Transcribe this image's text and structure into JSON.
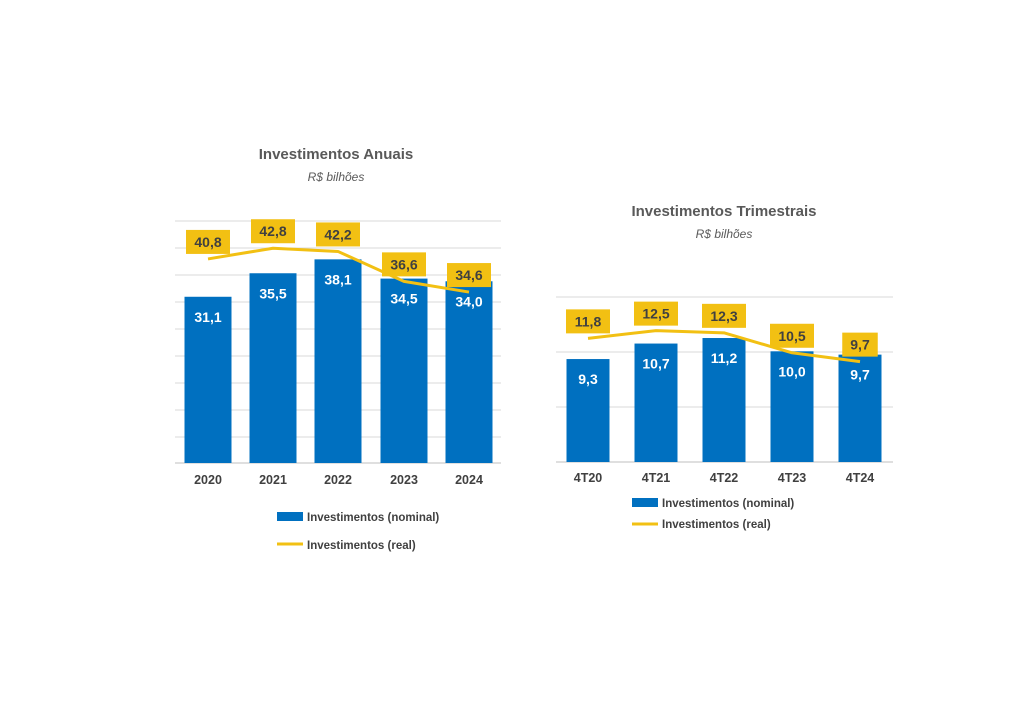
{
  "chart_data": [
    {
      "type": "bar",
      "title": "Investimentos Anuais",
      "subtitle": "R$ bilhões",
      "categories": [
        "2020",
        "2021",
        "2022",
        "2023",
        "2024"
      ],
      "series": [
        {
          "name": "Investimentos (nominal)",
          "type": "bar",
          "color": "#0070C0",
          "values": [
            31.1,
            35.5,
            38.1,
            34.5,
            34.0
          ],
          "labels": [
            "31,1",
            "35,5",
            "38,1",
            "34,5",
            "34,0"
          ]
        },
        {
          "name": "Investimentos (real)",
          "type": "line",
          "color": "#F2C013",
          "values": [
            40.8,
            42.8,
            42.2,
            36.6,
            34.6
          ],
          "labels": [
            "40,8",
            "42,8",
            "42,2",
            "36,6",
            "34,6"
          ]
        }
      ],
      "legend": "bottom",
      "grid": true
    },
    {
      "type": "bar",
      "title": "Investimentos Trimestrais",
      "subtitle": "R$ bilhões",
      "categories": [
        "4T20",
        "4T21",
        "4T22",
        "4T23",
        "4T24"
      ],
      "series": [
        {
          "name": "Investimentos (nominal)",
          "type": "bar",
          "color": "#0070C0",
          "values": [
            9.3,
            10.7,
            11.2,
            10.0,
            9.7
          ],
          "labels": [
            "9,3",
            "10,7",
            "11,2",
            "10,0",
            "9,7"
          ]
        },
        {
          "name": "Investimentos (real)",
          "type": "line",
          "color": "#F2C013",
          "values": [
            11.8,
            12.5,
            12.3,
            10.5,
            9.7
          ],
          "labels": [
            "11,8",
            "12,5",
            "12,3",
            "10,5",
            "9,7"
          ]
        }
      ],
      "legend": "bottom",
      "grid": true
    }
  ]
}
